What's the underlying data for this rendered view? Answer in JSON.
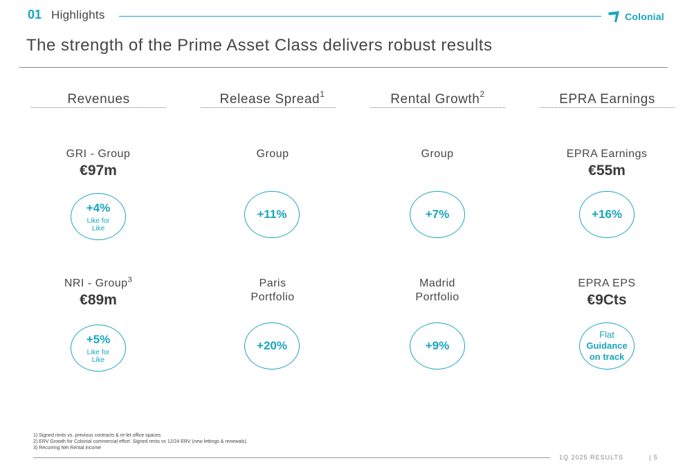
{
  "header": {
    "section_number": "01",
    "section_title": "Highlights",
    "logo_text": "Colonial",
    "brand_color": "#19a4bd"
  },
  "title": "The strength of the Prime Asset Class delivers robust results",
  "columns": [
    {
      "heading": "Revenues",
      "heading_sup": "",
      "top": {
        "label": "GRI - Group",
        "label_sup": "",
        "value": "€97m",
        "pct": "+4%",
        "sub1": "Like for",
        "sub2": "Like"
      },
      "bottom": {
        "label": "NRI - Group",
        "label_sup": "3",
        "label2": "",
        "value": "€89m",
        "pct": "+5%",
        "sub1": "Like for",
        "sub2": "Like"
      }
    },
    {
      "heading": "Release Spread",
      "heading_sup": "1",
      "top": {
        "label": "Group",
        "pct": "+11%"
      },
      "bottom": {
        "label": "Paris",
        "label2": "Portfolio",
        "pct": "+20%"
      }
    },
    {
      "heading": "Rental Growth",
      "heading_sup": "2",
      "top": {
        "label": "Group",
        "pct": "+7%"
      },
      "bottom": {
        "label": "Madrid",
        "label2": "Portfolio",
        "pct": "+9%"
      }
    },
    {
      "heading": "EPRA Earnings",
      "heading_sup": "",
      "top": {
        "label": "EPRA Earnings",
        "value": "€55m",
        "pct": "+16%"
      },
      "bottom": {
        "label": "EPRA EPS",
        "value": "€9Cts",
        "flat": "Flat",
        "guid1": "Guidance",
        "guid2": "on track"
      }
    }
  ],
  "footnotes": [
    "1) Signed rents vs. previous contracts & re-let office spaces",
    "2) ERV Growth for Colonial commercial effort .Signed rents vs 12/24 ERV (new lettings & renewals).",
    "3) Recurring Net Rental income"
  ],
  "footer": {
    "report": "1Q 2025 RESULTS",
    "page": "| 5"
  }
}
